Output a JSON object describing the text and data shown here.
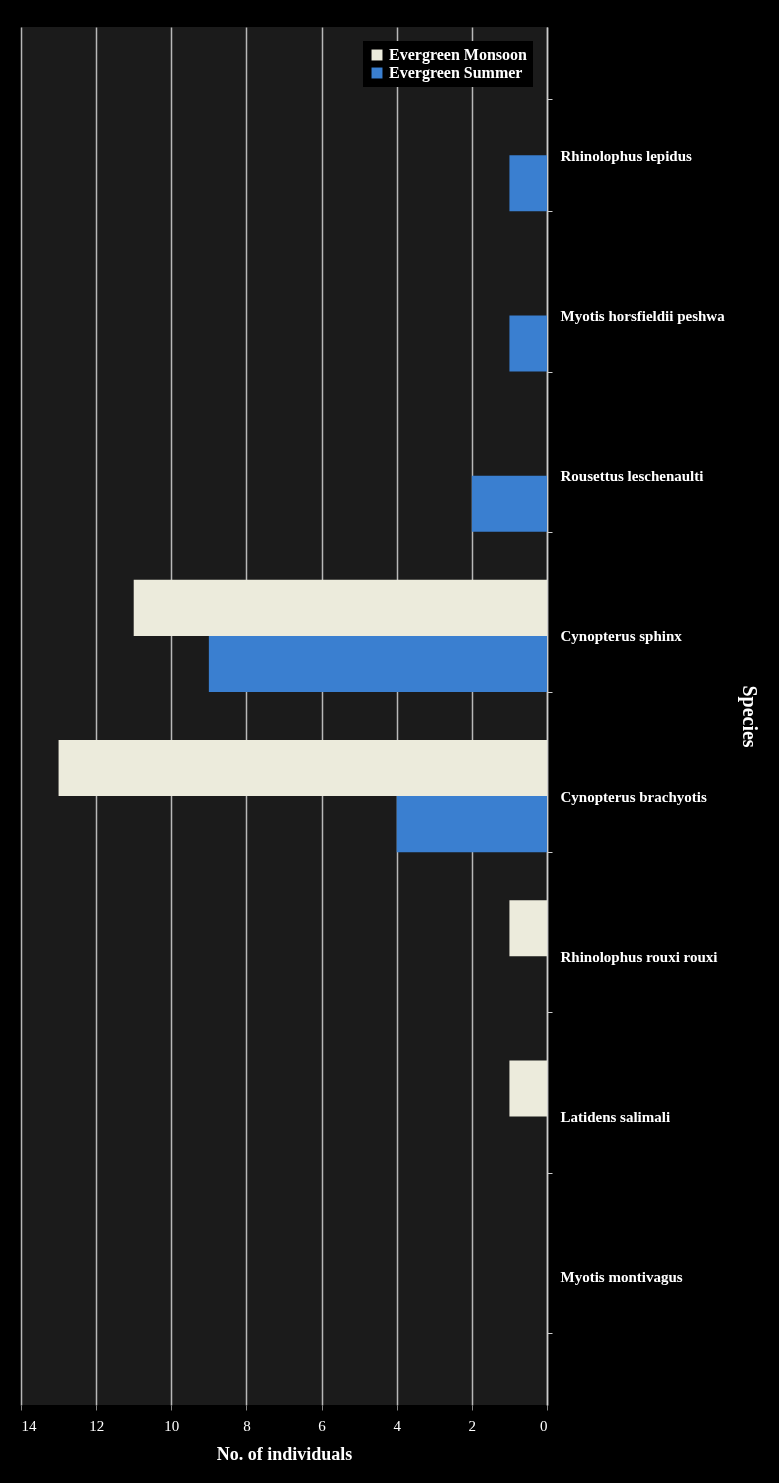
{
  "chart_data": {
    "type": "bar",
    "orientation": "horizontal",
    "xlabel": "No. of individuals",
    "ylabel": "Species",
    "categories": [
      "Rhinolophus lepidus",
      "Myotis horsfieldii peshwa",
      "Rousettus leschenaulti",
      "Cynopterus sphinx",
      "Cynopterus brachyotis",
      "Rhinolophus rouxi rouxi",
      "Latidens salimali",
      "Myotis montivagus"
    ],
    "series": [
      {
        "name": "Evergreen Monsoon",
        "color": "#ecebdc",
        "values": [
          0,
          0,
          0,
          11,
          13,
          1,
          1,
          0
        ]
      },
      {
        "name": "Evergreen Summer",
        "color": "#3a7fd0",
        "values": [
          1,
          1,
          2,
          9,
          4,
          0,
          0,
          0
        ]
      }
    ],
    "xlim": [
      14,
      0
    ],
    "xticks": [
      14,
      12,
      10,
      8,
      6,
      4,
      2,
      0
    ],
    "grid": true,
    "legend": "top right"
  }
}
